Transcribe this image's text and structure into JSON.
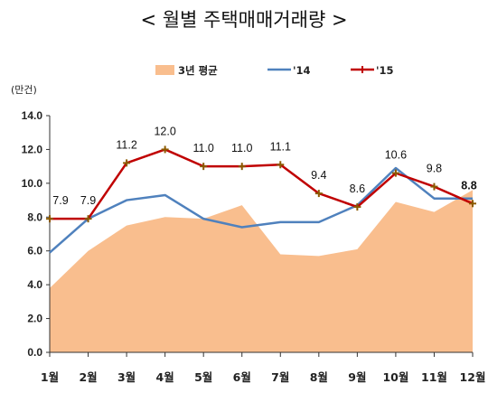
{
  "chart_data": {
    "type": "line",
    "title": "< 월별 주택매매거래량 >",
    "ylabel": "(만건)",
    "ylim": [
      0,
      14
    ],
    "yticks": [
      "0.0",
      "2.0",
      "4.0",
      "6.0",
      "8.0",
      "10.0",
      "12.0",
      "14.0"
    ],
    "categories": [
      "1월",
      "2월",
      "3월",
      "4월",
      "5월",
      "6월",
      "7월",
      "8월",
      "9월",
      "10월",
      "11월",
      "12월"
    ],
    "legend_position": "top",
    "grid": false,
    "series": [
      {
        "name": "3년 평균",
        "kind": "area",
        "color": "#f9be8e",
        "values": [
          3.8,
          6.0,
          7.5,
          8.0,
          7.9,
          8.7,
          5.8,
          5.7,
          6.1,
          8.9,
          8.3,
          9.6
        ]
      },
      {
        "name": "'14",
        "kind": "line",
        "color": "#4f81bd",
        "values": [
          5.9,
          7.9,
          9.0,
          9.3,
          7.9,
          7.4,
          7.7,
          7.7,
          8.7,
          10.9,
          9.1,
          9.1
        ]
      },
      {
        "name": "'15",
        "kind": "line",
        "color": "#c00000",
        "values": [
          7.9,
          7.9,
          11.2,
          12.0,
          11.0,
          11.0,
          11.1,
          9.4,
          8.6,
          10.6,
          9.8,
          8.8
        ],
        "labels": [
          "7.9",
          "7.9",
          "11.2",
          "12.0",
          "11.0",
          "11.0",
          "11.1",
          "9.4",
          "8.6",
          "10.6",
          "9.8",
          "8.8"
        ]
      }
    ]
  }
}
